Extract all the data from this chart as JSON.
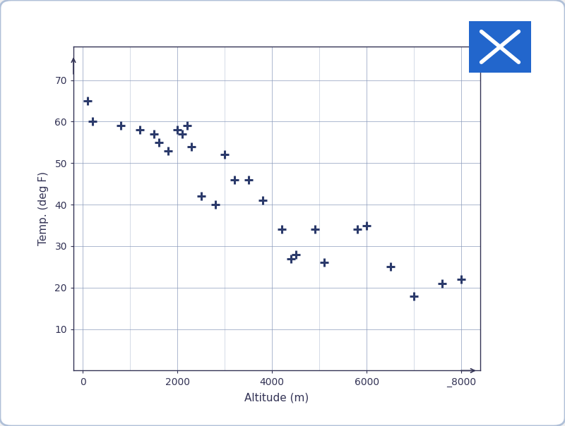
{
  "x": [
    100,
    200,
    800,
    1200,
    1500,
    1600,
    1800,
    2000,
    2100,
    2200,
    2300,
    2500,
    2800,
    3000,
    3200,
    3500,
    3800,
    4200,
    4400,
    4500,
    4900,
    5100,
    5800,
    6000,
    6500,
    7000,
    7600,
    8000
  ],
  "y": [
    65,
    60,
    59,
    58,
    57,
    55,
    53,
    58,
    57,
    59,
    54,
    42,
    40,
    52,
    46,
    46,
    41,
    34,
    27,
    28,
    34,
    26,
    34,
    35,
    25,
    18,
    21,
    22
  ],
  "xlabel": "Altitude (m)",
  "ylabel": "Temp. (deg F)",
  "xlim": [
    -200,
    8400
  ],
  "ylim": [
    0,
    78
  ],
  "xticks": [
    0,
    2000,
    4000,
    6000,
    8000
  ],
  "xtick_labels": [
    "0",
    "2000",
    "4000",
    "6000",
    "_8000"
  ],
  "yticks": [
    10,
    20,
    30,
    40,
    50,
    60,
    70
  ],
  "marker_color": "#2b3a6b",
  "outer_bg": "#f0f0f0",
  "plot_bg": "#ffffff",
  "border_color": "#b0c0d8",
  "grid_color": "#8899bb",
  "cross_bg": "#2266cc",
  "axis_color": "#333355",
  "label_fontsize": 11,
  "tick_fontsize": 10
}
